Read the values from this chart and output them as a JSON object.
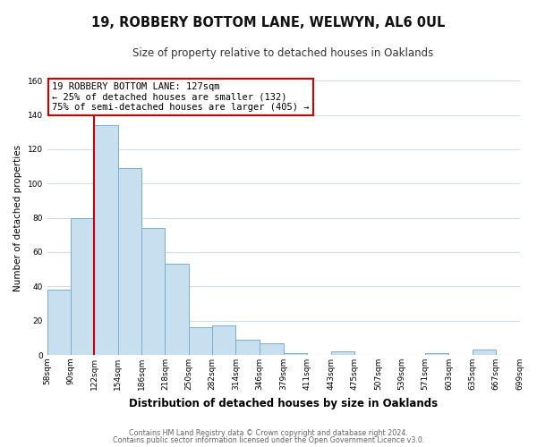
{
  "title": "19, ROBBERY BOTTOM LANE, WELWYN, AL6 0UL",
  "subtitle": "Size of property relative to detached houses in Oaklands",
  "xlabel": "Distribution of detached houses by size in Oaklands",
  "ylabel": "Number of detached properties",
  "bar_edges": [
    58,
    90,
    122,
    154,
    186,
    218,
    250,
    282,
    314,
    346,
    379,
    411,
    443,
    475,
    507,
    539,
    571,
    603,
    635,
    667,
    699
  ],
  "bar_heights": [
    38,
    80,
    134,
    109,
    74,
    53,
    16,
    17,
    9,
    7,
    1,
    0,
    2,
    0,
    0,
    0,
    1,
    0,
    3,
    0
  ],
  "bar_color": "#c8dff0",
  "bar_edge_color": "#7aaed0",
  "ylim": [
    0,
    160
  ],
  "yticks": [
    0,
    20,
    40,
    60,
    80,
    100,
    120,
    140,
    160
  ],
  "red_line_x": 122,
  "annotation_title": "19 ROBBERY BOTTOM LANE: 127sqm",
  "annotation_line1": "← 25% of detached houses are smaller (132)",
  "annotation_line2": "75% of semi-detached houses are larger (405) →",
  "annotation_box_facecolor": "#ffffff",
  "annotation_box_edgecolor": "#cc0000",
  "footer1": "Contains HM Land Registry data © Crown copyright and database right 2024.",
  "footer2": "Contains public sector information licensed under the Open Government Licence v3.0.",
  "bg_color": "#ffffff",
  "plot_bg_color": "#ffffff",
  "grid_color": "#d0dce8",
  "tick_labels": [
    "58sqm",
    "90sqm",
    "122sqm",
    "154sqm",
    "186sqm",
    "218sqm",
    "250sqm",
    "282sqm",
    "314sqm",
    "346sqm",
    "379sqm",
    "411sqm",
    "443sqm",
    "475sqm",
    "507sqm",
    "539sqm",
    "571sqm",
    "603sqm",
    "635sqm",
    "667sqm",
    "699sqm"
  ],
  "title_fontsize": 10.5,
  "subtitle_fontsize": 8.5,
  "xlabel_fontsize": 8.5,
  "ylabel_fontsize": 7.5,
  "tick_fontsize": 6.5,
  "footer_fontsize": 5.8,
  "annotation_fontsize": 7.5
}
